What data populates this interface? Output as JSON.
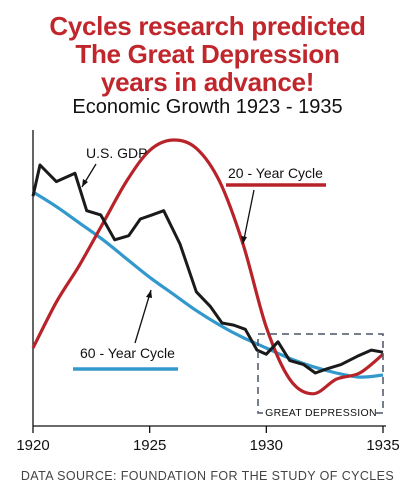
{
  "header": {
    "headline_lines": [
      "Cycles research predicted",
      "The Great Depression",
      "years in advance!"
    ],
    "subtitle": "Economic Growth 1923 - 1935"
  },
  "footer": {
    "source": "DATA SOURCE: FOUNDATION FOR THE STUDY OF CYCLES"
  },
  "colors": {
    "headline": "#c0272d",
    "gdp": "#1a1a1a",
    "cycle20": "#b8232a",
    "cycle60": "#3399cc",
    "box": "#4a5566"
  },
  "chart_data": {
    "type": "line",
    "title": "Economic Growth 1923 - 1935",
    "xlim": [
      1920,
      1935
    ],
    "x_ticks": [
      "1920",
      "1925",
      "1930",
      "1935"
    ],
    "x_tick_values": [
      1920,
      1925,
      1930,
      1935
    ],
    "y_ticks_shown": false,
    "grid": false,
    "series": [
      {
        "name": "U.S. GDP",
        "x": [
          1920.0,
          1920.3,
          1921.0,
          1921.8,
          1922.3,
          1922.9,
          1923.5,
          1924.1,
          1924.6,
          1925.1,
          1925.6,
          1926.3,
          1927.0,
          1927.6,
          1928.1,
          1928.6,
          1929.1,
          1929.6,
          1930.0,
          1930.5,
          1931.0,
          1931.6,
          1932.1,
          1932.6,
          1933.2,
          1933.9,
          1934.5,
          1935.0
        ],
        "y": [
          73,
          88,
          80,
          84,
          66,
          64,
          52,
          54,
          62,
          64,
          66,
          50,
          27,
          20,
          12,
          11,
          9,
          -1,
          -3,
          3,
          -6,
          -8,
          -12,
          -10,
          -8,
          -4,
          -1,
          -2
        ]
      },
      {
        "name": "20 - Year Cycle",
        "x": [
          1920.0,
          1921.0,
          1922.0,
          1923.0,
          1924.0,
          1925.0,
          1926.0,
          1927.0,
          1928.0,
          1929.0,
          1930.0,
          1931.0,
          1932.0,
          1933.0,
          1934.0,
          1935.0
        ],
        "y": [
          0,
          22,
          40,
          60,
          80,
          95,
          100,
          96,
          80,
          50,
          10,
          -15,
          -22,
          -15,
          -12,
          -3
        ]
      },
      {
        "name": "60 - Year Cycle",
        "x": [
          1920.0,
          1921.0,
          1922.0,
          1923.0,
          1924.0,
          1925.0,
          1926.0,
          1927.0,
          1928.0,
          1929.0,
          1930.0,
          1931.0,
          1932.0,
          1933.0,
          1934.0,
          1935.0
        ],
        "y": [
          75,
          68,
          60,
          52,
          43,
          34,
          26,
          18,
          11,
          5,
          0,
          -5,
          -9,
          -12,
          -14,
          -13
        ]
      }
    ],
    "annotations": [
      {
        "text": "U.S. GDP",
        "series": "U.S. GDP"
      },
      {
        "text": "20 - Year Cycle",
        "series": "20 - Year Cycle"
      },
      {
        "text": "60 - Year Cycle",
        "series": "60 - Year Cycle"
      },
      {
        "text": "GREAT DEPRESSION",
        "x_range": [
          1930,
          1935
        ]
      }
    ]
  }
}
